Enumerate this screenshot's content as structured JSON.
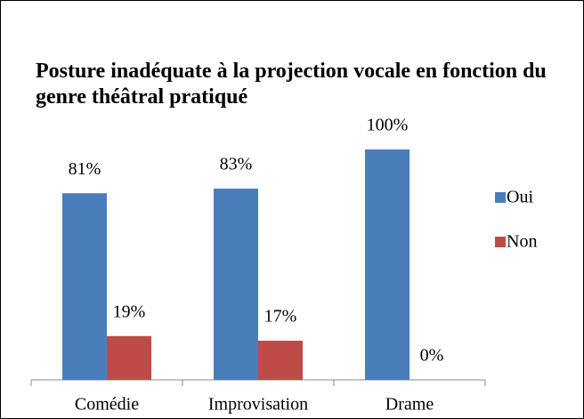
{
  "chart_data": {
    "type": "bar",
    "title": "Posture inadéquate à la projection vocale en fonction du genre théâtral pratiqué",
    "categories": [
      "Comédie",
      "Improvisation",
      "Drame"
    ],
    "series": [
      {
        "name": "Oui",
        "color": "#4a7ebb",
        "values": [
          81,
          83,
          100
        ],
        "value_labels": [
          "81%",
          "83%",
          "100%"
        ]
      },
      {
        "name": "Non",
        "color": "#be4b48",
        "values": [
          19,
          17,
          0
        ],
        "value_labels": [
          "19%",
          "17%",
          "0%"
        ]
      }
    ],
    "legend": "right"
  }
}
